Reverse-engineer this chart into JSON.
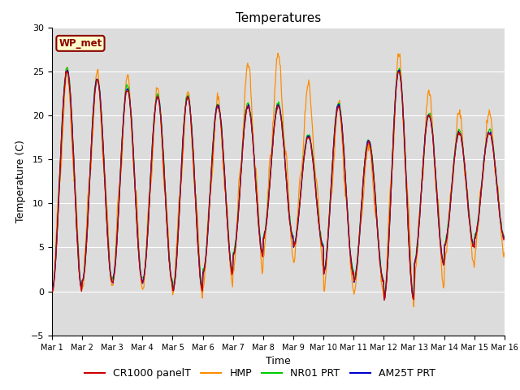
{
  "title": "Temperatures",
  "xlabel": "Time",
  "ylabel": "Temperature (C)",
  "ylim": [
    -5,
    30
  ],
  "xlim": [
    0,
    15
  ],
  "xtick_labels": [
    "Mar 1",
    "Mar 2",
    "Mar 3",
    "Mar 4",
    "Mar 5",
    "Mar 6",
    "Mar 7",
    "Mar 8",
    "Mar 9",
    "Mar 10",
    "Mar 11",
    "Mar 12",
    "Mar 13",
    "Mar 14",
    "Mar 15",
    "Mar 16"
  ],
  "ytick_values": [
    -5,
    0,
    5,
    10,
    15,
    20,
    25,
    30
  ],
  "series_colors": [
    "#CC0000",
    "#FF8C00",
    "#00CC00",
    "#0000CC"
  ],
  "series_names": [
    "CR1000 panelT",
    "HMP",
    "NR01 PRT",
    "AM25T PRT"
  ],
  "wp_met_label": "WP_met",
  "wp_met_bg": "#FFFFCC",
  "wp_met_edgecolor": "#8B0000",
  "plot_bg_color": "#DCDCDC",
  "grid_color": "#FFFFFF",
  "title_fontsize": 11,
  "axis_fontsize": 9,
  "tick_fontsize": 8,
  "legend_fontsize": 9,
  "n_points": 720,
  "base_mins": [
    0,
    1,
    1,
    1,
    0,
    2,
    4,
    6,
    5,
    2,
    1,
    -1,
    3,
    5,
    6
  ],
  "base_maxs": [
    25,
    24,
    23,
    22,
    22,
    21,
    21,
    21,
    17.5,
    21,
    17,
    25,
    20,
    18,
    18
  ],
  "hmp_mins": [
    -0.5,
    0.5,
    0.5,
    0,
    -0.5,
    0.5,
    2,
    4,
    3,
    0,
    -0.5,
    -1.5,
    0.5,
    3,
    4
  ],
  "hmp_maxs": [
    25,
    25,
    24.5,
    23,
    23,
    22,
    26,
    27,
    23.5,
    21.5,
    17,
    27,
    23,
    20.5,
    20.5
  ]
}
